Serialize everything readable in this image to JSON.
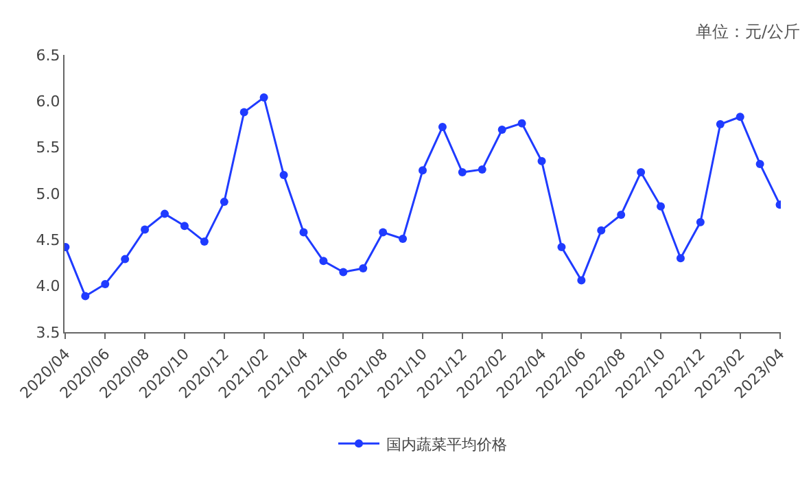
{
  "chart_data": {
    "type": "line",
    "categories": [
      "2020/04",
      null,
      "2020/06",
      null,
      "2020/08",
      null,
      "2020/10",
      null,
      "2020/12",
      null,
      "2021/02",
      null,
      "2021/04",
      null,
      "2021/06",
      null,
      "2021/08",
      null,
      "2021/10",
      null,
      "2021/12",
      null,
      "2022/02",
      null,
      "2022/04",
      null,
      "2022/06",
      null,
      "2022/08",
      null,
      "2022/10",
      null,
      "2022/12",
      null,
      "2023/02",
      null,
      "2023/04"
    ],
    "series": [
      {
        "name": "国内蔬菜平均价格",
        "color": "#1f3bff",
        "values": [
          4.42,
          3.89,
          4.02,
          4.29,
          4.61,
          4.78,
          4.65,
          4.48,
          4.91,
          5.88,
          6.04,
          5.2,
          4.58,
          4.27,
          4.15,
          4.19,
          4.58,
          4.51,
          5.25,
          5.72,
          5.23,
          5.26,
          5.69,
          5.76,
          5.35,
          4.42,
          4.06,
          4.6,
          4.77,
          5.23,
          4.86,
          4.3,
          4.69,
          5.75,
          5.83,
          5.32,
          4.88
        ]
      }
    ],
    "ylim": [
      3.5,
      6.5
    ],
    "yticks": [
      3.5,
      {
        "value": 4,
        "label": "4.0"
      },
      4.5,
      {
        "value": 5,
        "label": "5.0"
      },
      5.5,
      {
        "value": 6,
        "label": "6.0"
      },
      6.5
    ],
    "annotations": [
      "单位：元/公斤"
    ],
    "marker": "circle",
    "line_style": "solid",
    "legend": "bottom"
  }
}
